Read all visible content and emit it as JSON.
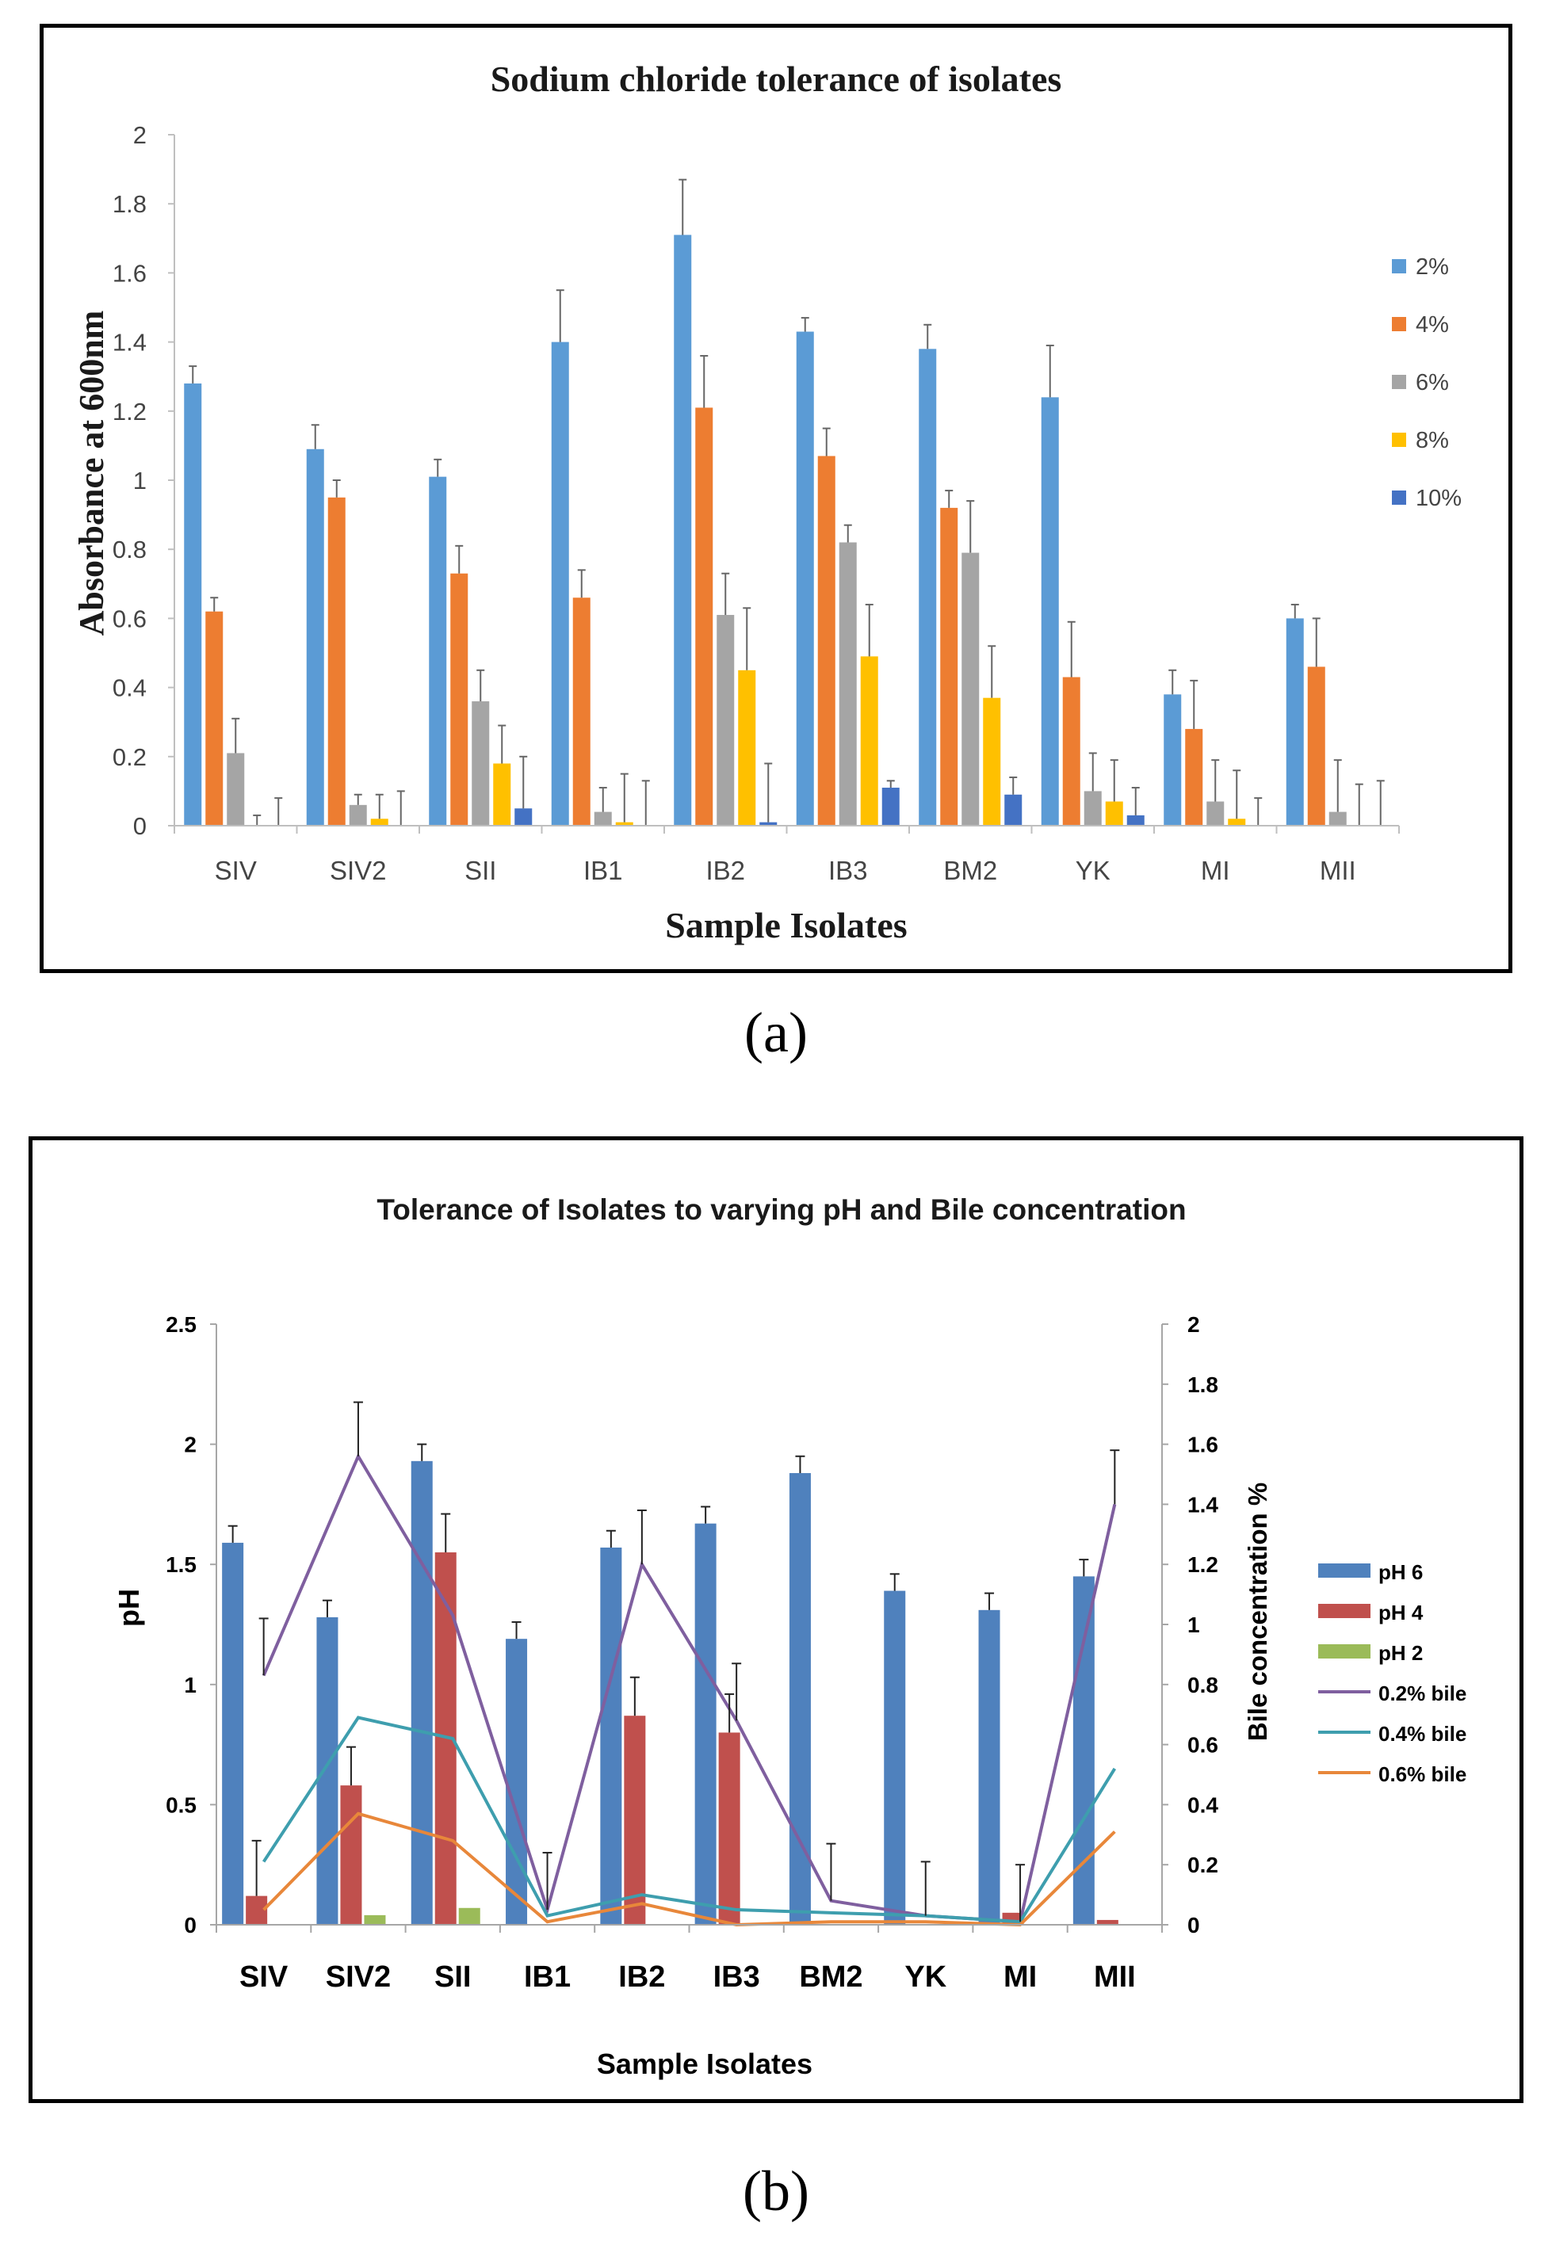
{
  "chart_data": [
    {
      "panel": "a",
      "type": "bar",
      "title": "Sodium chloride tolerance of isolates",
      "xlabel": "Sample Isolates",
      "ylabel": "Absorbance at 600nm",
      "ylim": [
        0,
        2
      ],
      "yticks": [
        "0",
        "0.2",
        "0.4",
        "0.6",
        "0.8",
        "1",
        "1.2",
        "1.4",
        "1.6",
        "1.8",
        "2"
      ],
      "categories": [
        "SIV",
        "SIV2",
        "SII",
        "IB1",
        "IB2",
        "IB3",
        "BM2",
        "YK",
        "MI",
        "MII"
      ],
      "legend_position": "right",
      "series": [
        {
          "name": "2%",
          "color": "#5B9BD5",
          "values": [
            1.28,
            1.09,
            1.01,
            1.4,
            1.71,
            1.43,
            1.38,
            1.24,
            0.38,
            0.6
          ],
          "errors": [
            0.05,
            0.07,
            0.05,
            0.15,
            0.16,
            0.04,
            0.07,
            0.15,
            0.07,
            0.04
          ]
        },
        {
          "name": "4%",
          "color": "#ED7D31",
          "values": [
            0.62,
            0.95,
            0.73,
            0.66,
            1.21,
            1.07,
            0.92,
            0.43,
            0.28,
            0.46
          ],
          "errors": [
            0.04,
            0.05,
            0.08,
            0.08,
            0.15,
            0.08,
            0.05,
            0.16,
            0.14,
            0.14
          ]
        },
        {
          "name": "6%",
          "color": "#A5A5A5",
          "values": [
            0.21,
            0.06,
            0.36,
            0.04,
            0.61,
            0.82,
            0.79,
            0.1,
            0.07,
            0.04
          ],
          "errors": [
            0.1,
            0.03,
            0.09,
            0.07,
            0.12,
            0.05,
            0.15,
            0.11,
            0.12,
            0.15
          ]
        },
        {
          "name": "8%",
          "color": "#FFC000",
          "values": [
            0.0,
            0.02,
            0.18,
            0.01,
            0.45,
            0.49,
            0.37,
            0.07,
            0.02,
            0.0
          ],
          "errors": [
            0.03,
            0.07,
            0.11,
            0.14,
            0.18,
            0.15,
            0.15,
            0.12,
            0.14,
            0.12
          ]
        },
        {
          "name": "10%",
          "color": "#4472C4",
          "values": [
            0.0,
            0.0,
            0.05,
            0.0,
            0.01,
            0.11,
            0.09,
            0.03,
            0.0,
            0.0
          ],
          "errors": [
            0.08,
            0.1,
            0.15,
            0.13,
            0.17,
            0.02,
            0.05,
            0.08,
            0.08,
            0.13
          ]
        }
      ]
    },
    {
      "panel": "b",
      "type": "bar",
      "title": "Tolerance of Isolates to varying pH and Bile concentration",
      "xlabel": "Sample Isolates",
      "ylabel": "pH",
      "y2label": "Bile concentration %",
      "ylim": [
        0,
        2.5
      ],
      "y2lim": [
        0,
        2
      ],
      "yticks": [
        "0",
        "0.5",
        "1",
        "1.5",
        "2",
        "2.5"
      ],
      "y2ticks": [
        "0",
        "0.2",
        "0.4",
        "0.6",
        "0.8",
        "1",
        "1.2",
        "1.4",
        "1.6",
        "1.8",
        "2"
      ],
      "categories": [
        "SIV",
        "SIV2",
        "SII",
        "IB1",
        "IB2",
        "IB3",
        "BM2",
        "YK",
        "MI",
        "MII"
      ],
      "legend_position": "right",
      "series": [
        {
          "name": "pH 6",
          "kind": "bar",
          "axis": "left",
          "color": "#4F81BD",
          "values": [
            1.59,
            1.28,
            1.93,
            1.19,
            1.57,
            1.67,
            1.88,
            1.39,
            1.31,
            1.45
          ],
          "errors": [
            0.07,
            0.07,
            0.07,
            0.07,
            0.07,
            0.07,
            0.07,
            0.07,
            0.07,
            0.07
          ]
        },
        {
          "name": "pH 4",
          "kind": "bar",
          "axis": "left",
          "color": "#C0504D",
          "values": [
            0.12,
            0.58,
            1.55,
            0.0,
            0.87,
            0.8,
            0.0,
            0.0,
            0.05,
            0.02
          ],
          "errors": [
            0.23,
            0.16,
            0.16,
            0.0,
            0.16,
            0.16,
            0.0,
            0.0,
            0.0,
            0.0
          ]
        },
        {
          "name": "pH 2",
          "kind": "bar",
          "axis": "left",
          "color": "#9BBB59",
          "values": [
            0.0,
            0.04,
            0.07,
            0.0,
            0.0,
            0.0,
            0.0,
            0.0,
            0.0,
            0.0
          ],
          "errors": [
            0,
            0,
            0,
            0,
            0,
            0,
            0,
            0,
            0,
            0
          ]
        },
        {
          "name": "0.2% bile",
          "kind": "line",
          "axis": "right",
          "color": "#7F5F9F",
          "values": [
            0.83,
            1.56,
            1.03,
            0.05,
            1.2,
            0.68,
            0.08,
            0.03,
            0.01,
            1.4
          ],
          "errors": [
            0.19,
            0.18,
            0.0,
            0.19,
            0.18,
            0.19,
            0.19,
            0.18,
            0.19,
            0.18
          ]
        },
        {
          "name": "0.4% bile",
          "kind": "line",
          "axis": "right",
          "color": "#3E9EAE",
          "values": [
            0.21,
            0.69,
            0.62,
            0.03,
            0.1,
            0.05,
            0.04,
            0.03,
            0.01,
            0.52
          ],
          "errors": [
            0,
            0,
            0,
            0,
            0,
            0,
            0,
            0,
            0,
            0
          ]
        },
        {
          "name": "0.6% bile",
          "kind": "line",
          "axis": "right",
          "color": "#E8873A",
          "values": [
            0.05,
            0.37,
            0.28,
            0.01,
            0.07,
            0.0,
            0.01,
            0.01,
            0.0,
            0.31
          ],
          "errors": [
            0,
            0,
            0,
            0,
            0,
            0,
            0,
            0,
            0,
            0
          ]
        }
      ]
    }
  ],
  "captions": {
    "a": "(a)",
    "b": "(b)"
  }
}
